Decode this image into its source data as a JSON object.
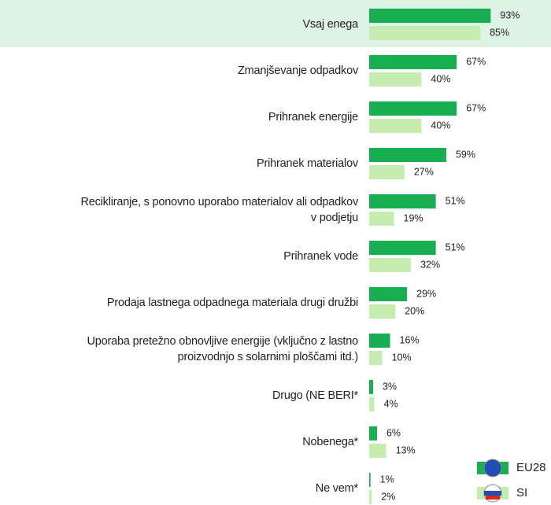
{
  "chart_data": {
    "type": "hbar",
    "categories": [
      "Vsaj enega",
      "Zmanjševanje odpadkov",
      "Prihranek energije",
      "Prihranek materialov",
      "Recikliranje, s ponovno uporabo materialov ali odpadkov\nv podjetju",
      "Prihranek vode",
      "Prodaja lastnega odpadnega materiala drugi družbi",
      "Uporaba pretežno obnovljive energije (vključno z lastno\nproizvodnjo s solarnimi ploščami itd.)",
      "Drugo (NE BERI*",
      "Nobenega*",
      "Ne vem*"
    ],
    "series": [
      {
        "name": "EU28",
        "color": "#1aae52",
        "values": [
          93,
          67,
          67,
          59,
          51,
          51,
          29,
          16,
          3,
          6,
          1
        ],
        "value_labels": [
          "93%",
          "67%",
          "67%",
          "59%",
          "51%",
          "51%",
          "29%",
          "16%",
          "3%",
          "6%",
          "1%"
        ]
      },
      {
        "name": "SI",
        "color": "#c6ecb2",
        "values": [
          85,
          40,
          40,
          27,
          19,
          32,
          20,
          10,
          4,
          13,
          2
        ],
        "value_labels": [
          "85%",
          "40%",
          "40%",
          "27%",
          "19%",
          "32%",
          "20%",
          "10%",
          "4%",
          "13%",
          "2%"
        ]
      }
    ]
  }
}
